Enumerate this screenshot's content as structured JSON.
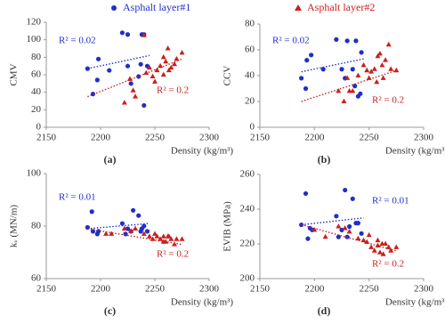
{
  "chart_data": [
    {
      "type": "scatter",
      "caption": "(a)",
      "xlabel": "Density (kg/m³)",
      "ylabel": "CMV",
      "xlim": [
        2150,
        2300
      ],
      "xticks": [
        2150,
        2200,
        2250,
        2300
      ],
      "ylim": [
        0,
        120
      ],
      "yticks": [
        0,
        20,
        40,
        60,
        80,
        100,
        120
      ],
      "series": [
        {
          "name": "Asphalt layer#1",
          "color": "#1f2fc8",
          "marker": "circle",
          "x": [
            2188,
            2193,
            2197,
            2198,
            2208,
            2220,
            2225,
            2225,
            2228,
            2235,
            2237,
            2238,
            2240,
            2240,
            2243
          ],
          "y": [
            67,
            38,
            54,
            78,
            65,
            108,
            106,
            70,
            50,
            58,
            72,
            106,
            106,
            25,
            70
          ],
          "trend": {
            "x": [
              2188,
              2245
            ],
            "y": [
              67,
              82
            ]
          }
        },
        {
          "name": "Asphalt layer#2",
          "color": "#c8201e",
          "marker": "triangle",
          "x": [
            2222,
            2227,
            2230,
            2232,
            2240,
            2242,
            2245,
            2248,
            2250,
            2252,
            2255,
            2258,
            2260,
            2262,
            2265,
            2268,
            2270,
            2275,
            2258,
            2263
          ],
          "y": [
            28,
            55,
            42,
            35,
            105,
            62,
            68,
            58,
            52,
            65,
            70,
            60,
            75,
            90,
            68,
            72,
            78,
            85,
            80,
            65
          ],
          "trend": {
            "x": [
              2188,
              2275
            ],
            "y": [
              35,
              78
            ]
          }
        }
      ],
      "annotations": [
        {
          "text": "R² = 0.02",
          "color": "#1f2fc8"
        },
        {
          "text": "R² = 0.2",
          "color": "#c8201e"
        }
      ]
    },
    {
      "type": "scatter",
      "caption": "(b)",
      "xlabel": "Density (kg/m³)",
      "ylabel": "CCV",
      "xlim": [
        2150,
        2300
      ],
      "xticks": [
        2150,
        2200,
        2250,
        2300
      ],
      "ylim": [
        0,
        80
      ],
      "yticks": [
        0,
        20,
        40,
        60,
        80
      ],
      "series": [
        {
          "color": "#1f2fc8",
          "marker": "circle",
          "x": [
            2188,
            2192,
            2193,
            2197,
            2208,
            2220,
            2225,
            2228,
            2230,
            2235,
            2237,
            2238,
            2240,
            2242,
            2243
          ],
          "y": [
            38,
            30,
            52,
            56,
            45,
            68,
            45,
            38,
            67,
            45,
            32,
            67,
            24,
            26,
            58
          ],
          "trend": {
            "x": [
              2188,
              2245
            ],
            "y": [
              43,
              53
            ]
          }
        },
        {
          "color": "#c8201e",
          "marker": "triangle",
          "x": [
            2222,
            2227,
            2230,
            2232,
            2240,
            2245,
            2248,
            2250,
            2252,
            2255,
            2258,
            2260,
            2262,
            2265,
            2268,
            2270,
            2275,
            2263,
            2257,
            2235
          ],
          "y": [
            28,
            20,
            38,
            28,
            40,
            48,
            44,
            38,
            43,
            45,
            55,
            57,
            48,
            52,
            64,
            45,
            44,
            38,
            35,
            28
          ],
          "trend": {
            "x": [
              2188,
              2275
            ],
            "y": [
              20,
              44
            ]
          }
        }
      ],
      "annotations": [
        {
          "text": "R² = 0.02",
          "color": "#1f2fc8"
        },
        {
          "text": "R² = 0.2",
          "color": "#c8201e"
        }
      ]
    },
    {
      "type": "scatter",
      "caption": "(c)",
      "xlabel": "Density (kg/m³)",
      "ylabel": "kᵥ (MN/m)",
      "xlim": [
        2150,
        2300
      ],
      "xticks": [
        2150,
        2200,
        2250,
        2300
      ],
      "ylim": [
        60,
        100
      ],
      "yticks": [
        60,
        80,
        100
      ],
      "series": [
        {
          "color": "#1f2fc8",
          "marker": "circle",
          "x": [
            2188,
            2192,
            2193,
            2197,
            2198,
            2220,
            2223,
            2225,
            2228,
            2230,
            2235,
            2238,
            2240,
            2243,
            2237
          ],
          "y": [
            79.5,
            85.5,
            78,
            77,
            78,
            81,
            77,
            79,
            78,
            86,
            84,
            79,
            80,
            78,
            78
          ],
          "trend": {
            "x": [
              2188,
              2245
            ],
            "y": [
              79,
              81
            ]
          }
        },
        {
          "color": "#c8201e",
          "marker": "triangle",
          "x": [
            2205,
            2210,
            2222,
            2228,
            2232,
            2240,
            2245,
            2248,
            2250,
            2252,
            2255,
            2258,
            2260,
            2262,
            2265,
            2268,
            2270,
            2275,
            2258,
            2263
          ],
          "y": [
            77,
            77,
            79,
            78,
            79,
            77,
            76,
            75,
            77,
            76,
            75,
            76,
            74,
            76,
            75,
            73,
            75,
            75,
            74,
            76
          ],
          "trend": {
            "x": [
              2188,
              2275
            ],
            "y": [
              79,
              73
            ]
          }
        }
      ],
      "annotations": [
        {
          "text": "R² = 0.01",
          "color": "#1f2fc8"
        },
        {
          "text": "R² = 0.2",
          "color": "#c8201e"
        }
      ]
    },
    {
      "type": "scatter",
      "caption": "(d)",
      "xlabel": "Density (kg/m³)",
      "ylabel": "EVIB (MPa)",
      "xlim": [
        2150,
        2300
      ],
      "xticks": [
        2150,
        2200,
        2250,
        2300
      ],
      "ylim": [
        200,
        260
      ],
      "yticks": [
        200,
        220,
        240,
        260
      ],
      "series": [
        {
          "color": "#1f2fc8",
          "marker": "circle",
          "x": [
            2188,
            2192,
            2194,
            2196,
            2198,
            2220,
            2222,
            2225,
            2228,
            2230,
            2232,
            2235,
            2238,
            2240,
            2243
          ],
          "y": [
            231,
            249,
            223,
            229,
            228,
            236,
            224,
            228,
            251,
            224,
            230,
            246,
            232,
            232,
            226
          ],
          "trend": {
            "x": [
              2188,
              2245
            ],
            "y": [
              231,
              235
            ]
          }
        },
        {
          "color": "#c8201e",
          "marker": "triangle",
          "x": [
            2200,
            2210,
            2222,
            2228,
            2232,
            2240,
            2245,
            2248,
            2250,
            2252,
            2255,
            2258,
            2260,
            2262,
            2265,
            2268,
            2270,
            2275,
            2258,
            2263
          ],
          "y": [
            228,
            224,
            230,
            229,
            227,
            223,
            222,
            221,
            225,
            218,
            216,
            219,
            215,
            220,
            220,
            218,
            216,
            218,
            222,
            214
          ],
          "trend": {
            "x": [
              2188,
              2275
            ],
            "y": [
              231,
              216
            ]
          }
        }
      ],
      "annotations": [
        {
          "text": "R² = 0.01",
          "color": "#1f2fc8"
        },
        {
          "text": "R² = 0.2",
          "color": "#c8201e"
        }
      ]
    }
  ]
}
